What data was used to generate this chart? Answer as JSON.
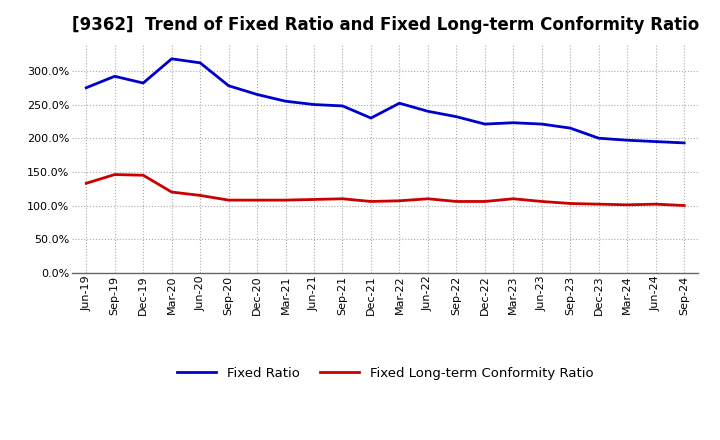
{
  "title": "[9362]  Trend of Fixed Ratio and Fixed Long-term Conformity Ratio",
  "x_labels": [
    "Jun-19",
    "Sep-19",
    "Dec-19",
    "Mar-20",
    "Jun-20",
    "Sep-20",
    "Dec-20",
    "Mar-21",
    "Jun-21",
    "Sep-21",
    "Dec-21",
    "Mar-22",
    "Jun-22",
    "Sep-22",
    "Dec-22",
    "Mar-23",
    "Jun-23",
    "Sep-23",
    "Dec-23",
    "Mar-24",
    "Jun-24",
    "Sep-24"
  ],
  "fixed_ratio": [
    275,
    292,
    282,
    318,
    312,
    278,
    265,
    255,
    250,
    248,
    230,
    252,
    240,
    232,
    221,
    223,
    221,
    215,
    200,
    197,
    195,
    193
  ],
  "fixed_lt_ratio": [
    133,
    146,
    145,
    120,
    115,
    108,
    108,
    108,
    109,
    110,
    106,
    107,
    110,
    106,
    106,
    110,
    106,
    103,
    102,
    101,
    102,
    100
  ],
  "fixed_ratio_color": "#0000cc",
  "fixed_lt_ratio_color": "#cc0000",
  "ylim": [
    0,
    340
  ],
  "yticks": [
    0,
    50,
    100,
    150,
    200,
    250,
    300
  ],
  "grid_color": "#aaaaaa",
  "background_color": "#ffffff",
  "plot_bg_color": "#ffffff",
  "legend_fixed": "Fixed Ratio",
  "legend_lt": "Fixed Long-term Conformity Ratio",
  "title_fontsize": 12,
  "tick_fontsize": 8,
  "legend_fontsize": 9.5,
  "linewidth": 2.0
}
